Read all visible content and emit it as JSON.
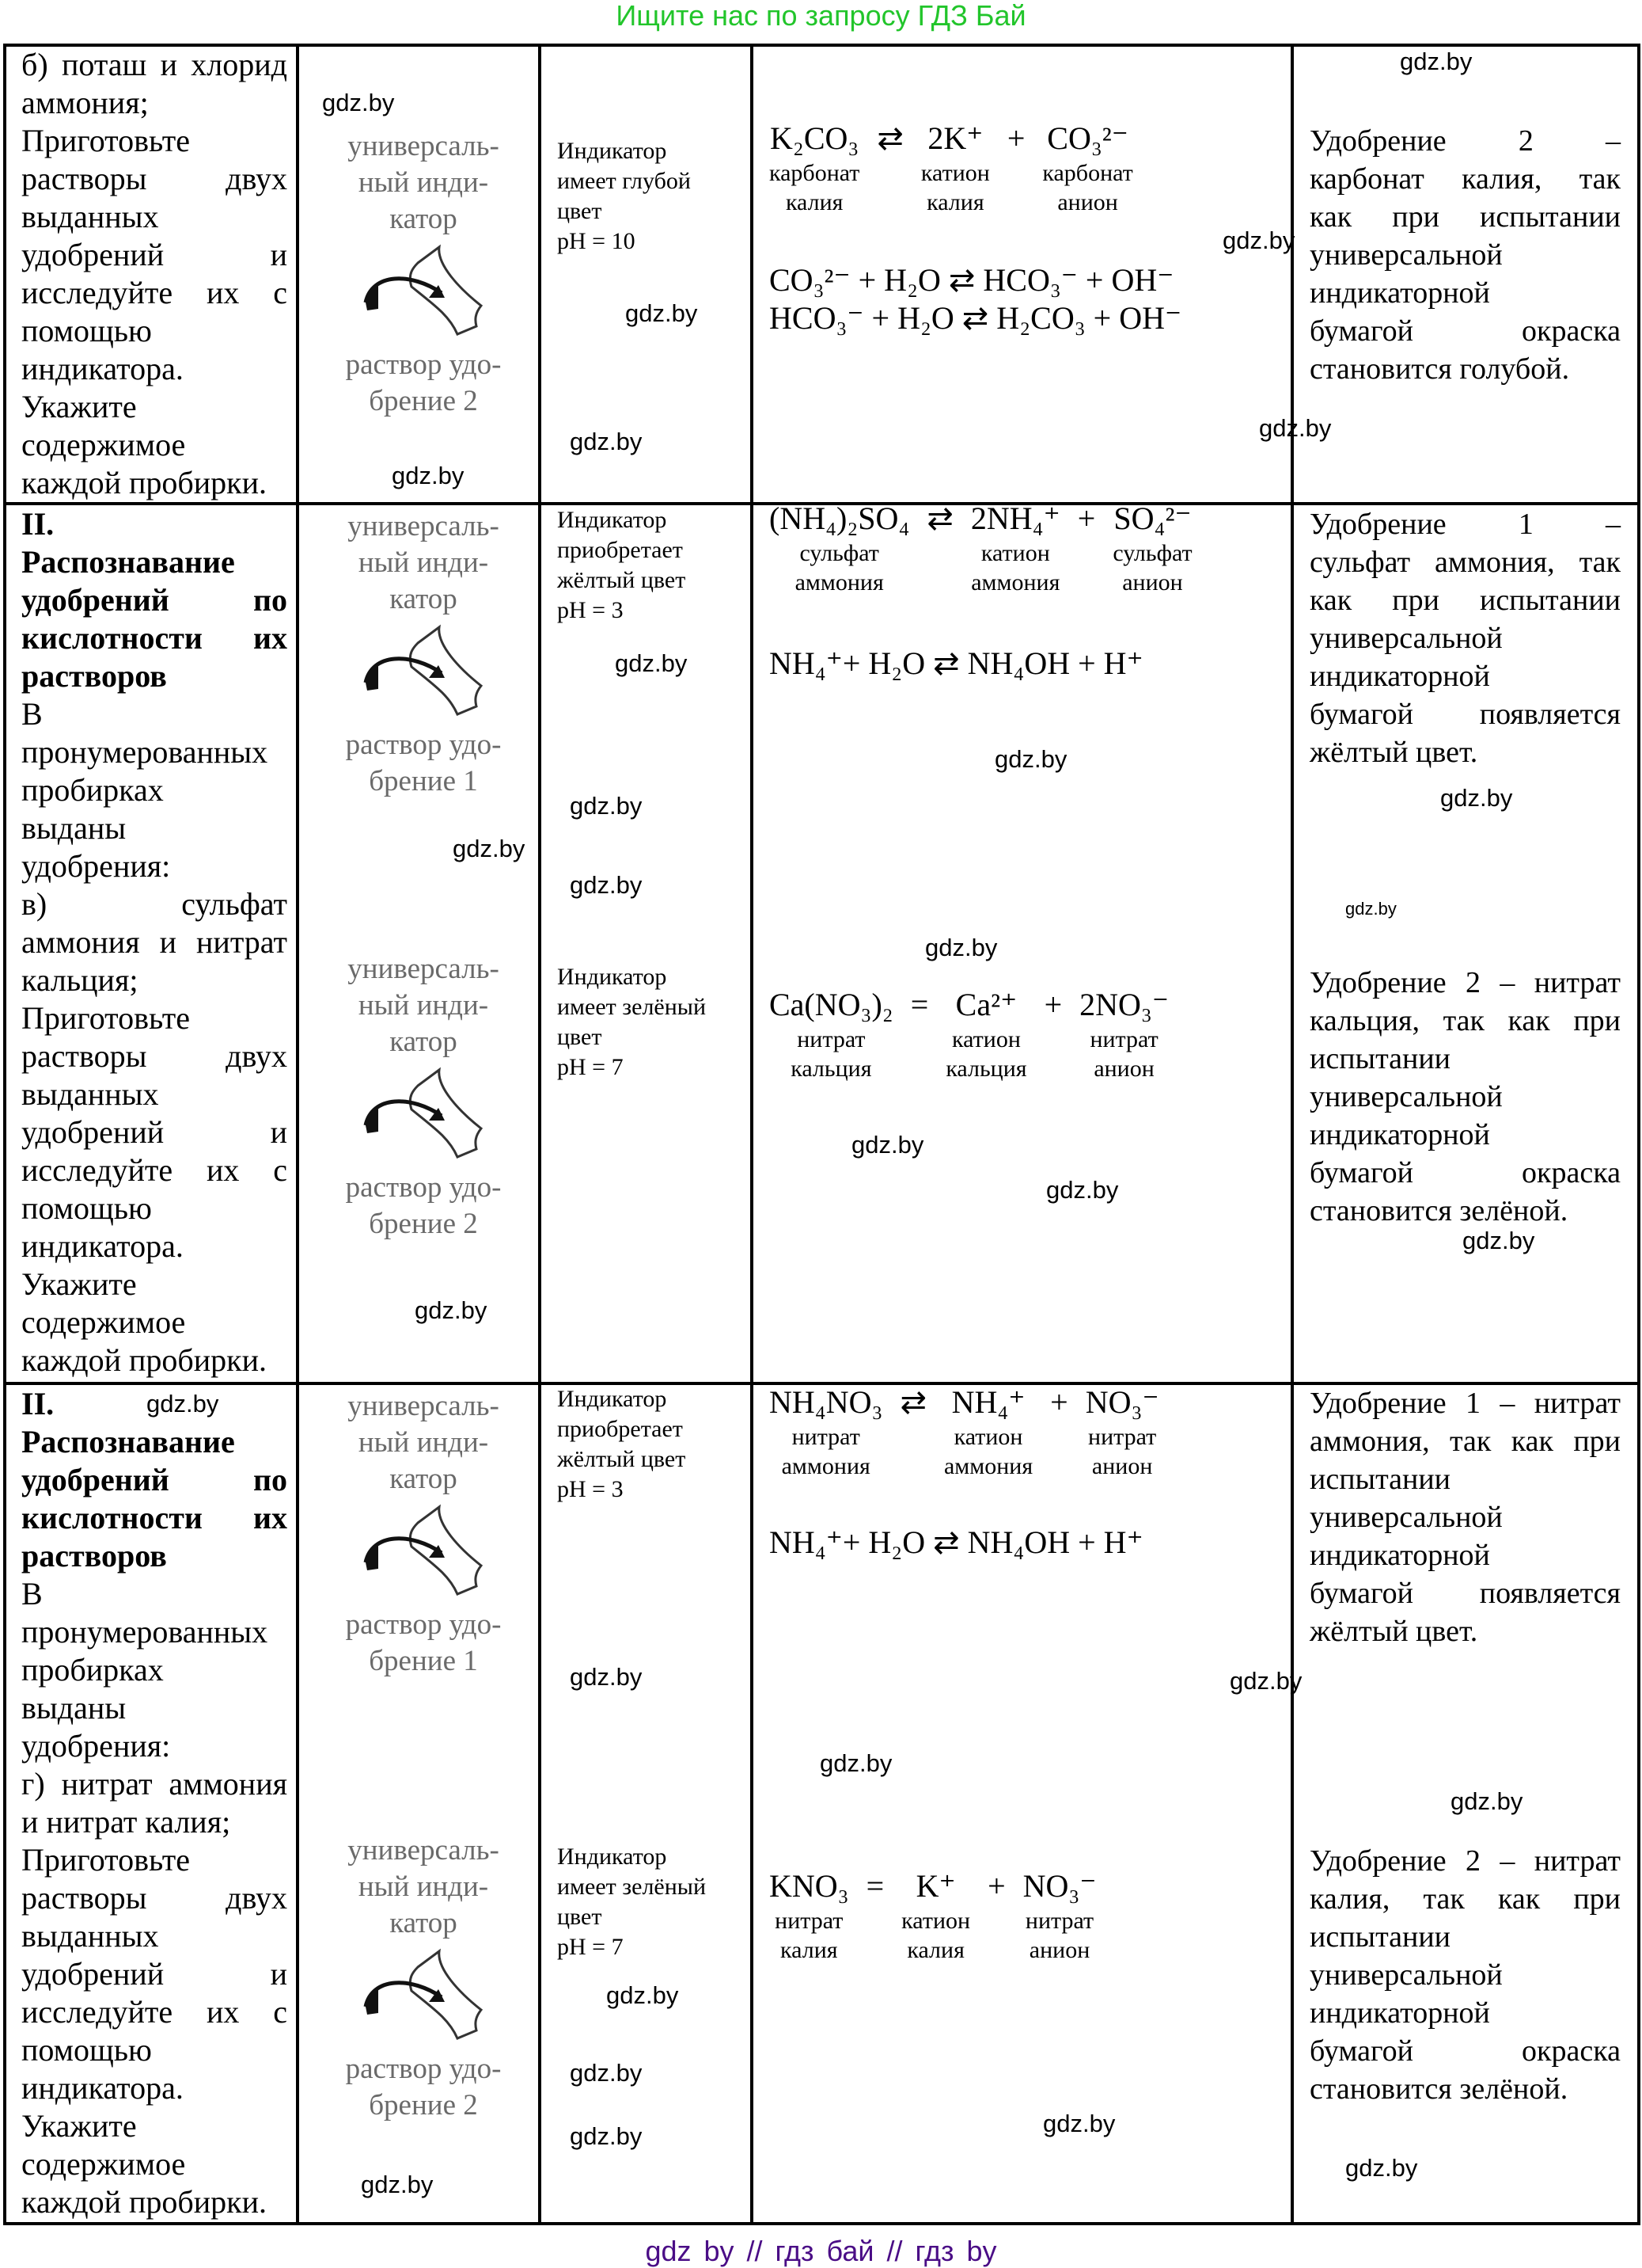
{
  "banner": "Ищите нас по запросу ГДЗ Бай",
  "footer": "gdz by  //  гдз бай  //  гдз by",
  "watermark": "gdz.by",
  "picture": {
    "line1": "универсаль-",
    "line2": "ный инди-",
    "line3": "катор",
    "sol1": "раствор удо-",
    "sol1b": "брение 1",
    "sol2b": "брение 2"
  },
  "sections": [
    {
      "task": [
        "б) поташ и хлорид",
        "аммония;",
        "Приготовьте",
        "растворы двух",
        "выданных",
        "удобрений и",
        "исследуйте их с",
        "помощью",
        "индикатора.",
        "Укажите",
        "содержимое",
        "каждой пробирки."
      ],
      "cases": [
        {
          "observation": [
            "Индикатор",
            "имеет глубой",
            "цвет",
            "pH = 10"
          ],
          "equation": [
            {
              "f": "K₂CO₃",
              "l": [
                "карбонат",
                "калия"
              ]
            },
            {
              "op": "⇄"
            },
            {
              "f": "2K⁺",
              "l": [
                "катион",
                "калия"
              ]
            },
            {
              "op": "+"
            },
            {
              "f": "CO₃²⁻",
              "l": [
                "карбонат",
                "анион"
              ]
            }
          ],
          "hydrolysis": [
            "CO₃²⁻ + H₂O ⇄ HCO₃⁻ + OH⁻",
            "HCO₃⁻ + H₂O ⇄ H₂CO₃ + OH⁻"
          ],
          "conclusion": [
            "Удобрение 2 –",
            "карбонат калия, так",
            "как при испытании",
            "универсальной",
            "индикаторной",
            "бумагой окраска",
            "становится голубой."
          ]
        }
      ]
    },
    {
      "task_title": [
        "II.",
        "Распознавание",
        "удобрений по",
        "кислотности их",
        "растворов"
      ],
      "task": [
        "В",
        "пронумерованных",
        "пробирках",
        "выданы",
        "удобрения:",
        "в) сульфат",
        "аммония и нитрат",
        "кальция;",
        "Приготовьте",
        "растворы двух",
        "выданных",
        "удобрений и",
        "исследуйте их с",
        "помощью",
        "индикатора.",
        "Укажите",
        "содержимое",
        "каждой пробирки."
      ],
      "cases": [
        {
          "observation": [
            "Индикатор",
            "приобретает",
            "жёлтый цвет",
            "pH = 3"
          ],
          "equation": [
            {
              "f": "(NH₄)₂SO₄",
              "l": [
                "сульфат",
                "аммония"
              ]
            },
            {
              "op": "⇄"
            },
            {
              "f": "2NH₄⁺",
              "l": [
                "катион",
                "аммония"
              ]
            },
            {
              "op": "+"
            },
            {
              "f": "SO₄²⁻",
              "l": [
                "сульфат",
                "анион"
              ]
            }
          ],
          "hydrolysis": [
            "NH₄⁺+ H₂O ⇄ NH₄OH + H⁺"
          ],
          "conclusion": [
            "Удобрение 1 –",
            "сульфат аммония, так",
            "как при испытании",
            "универсальной",
            "индикаторной",
            "бумагой появляется",
            "жёлтый цвет."
          ]
        },
        {
          "observation": [
            "Индикатор",
            "имеет зелёный",
            "цвет",
            "pH = 7"
          ],
          "equation": [
            {
              "f": "Ca(NO₃)₂",
              "l": [
                "нитрат",
                "кальция"
              ]
            },
            {
              "op": "="
            },
            {
              "f": "Ca²⁺",
              "l": [
                "катион",
                "кальция"
              ]
            },
            {
              "op": "+"
            },
            {
              "f": "2NO₃⁻",
              "l": [
                "нитрат",
                "анион"
              ]
            }
          ],
          "conclusion": [
            "Удобрение 2 – нитрат",
            "кальция, так как при",
            "испытании",
            "универсальной",
            "индикаторной",
            "бумагой окраска",
            "становится зелёной."
          ]
        }
      ]
    },
    {
      "task_title": [
        "II.",
        "Распознавание",
        "удобрений по",
        "кислотности их",
        "растворов"
      ],
      "task": [
        "В",
        "пронумерованных",
        "пробирках",
        "выданы",
        "удобрения:",
        "г) нитрат аммония",
        "и нитрат калия;",
        "Приготовьте",
        "растворы двух",
        "выданных",
        "удобрений и",
        "исследуйте их с",
        "помощью",
        "индикатора.",
        "Укажите",
        "содержимое",
        "каждой пробирки."
      ],
      "cases": [
        {
          "observation": [
            "Индикатор",
            "приобретает",
            "жёлтый цвет",
            "pH = 3"
          ],
          "equation": [
            {
              "f": "NH₄NO₃",
              "l": [
                "нитрат",
                "аммония"
              ]
            },
            {
              "op": "⇄"
            },
            {
              "f": "NH₄⁺",
              "l": [
                "катион",
                "аммония"
              ]
            },
            {
              "op": "+"
            },
            {
              "f": "NO₃⁻",
              "l": [
                "нитрат",
                "анион"
              ]
            }
          ],
          "hydrolysis": [
            "NH₄⁺+ H₂O ⇄ NH₄OH + H⁺"
          ],
          "conclusion": [
            "Удобрение 1 – нитрат",
            "аммония, так как при",
            "испытании",
            "универсальной",
            "индикаторной",
            "бумагой появляется",
            "жёлтый цвет."
          ]
        },
        {
          "observation": [
            "Индикатор",
            "имеет зелёный",
            "цвет",
            "pH = 7"
          ],
          "equation": [
            {
              "f": "KNO₃",
              "l": [
                "нитрат",
                "калия"
              ]
            },
            {
              "op": "="
            },
            {
              "f": "K⁺",
              "l": [
                "катион",
                "калия"
              ]
            },
            {
              "op": "+"
            },
            {
              "f": "NO₃⁻",
              "l": [
                "нитрат",
                "анион"
              ]
            }
          ],
          "conclusion": [
            "Удобрение 2 – нитрат",
            "калия, так как при",
            "испытании",
            "универсальной",
            "индикаторной",
            "бумагой окраска",
            "становится зелёной."
          ]
        }
      ]
    }
  ],
  "colors": {
    "banner": "#22c52b",
    "footer": "#4a0d86",
    "picture_text": "#6a6a6a"
  }
}
